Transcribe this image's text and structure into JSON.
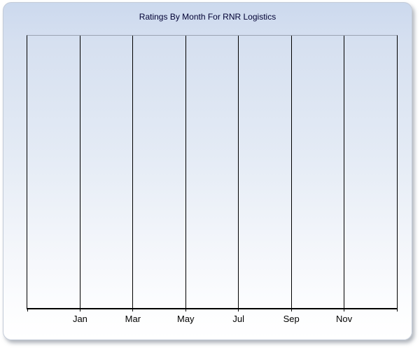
{
  "widget": {
    "title": "Ratings By Month For RNR Logistics",
    "colors": {
      "background_top": "#ccd9ee",
      "background_mid": "#e4ebf5",
      "background_bottom": "#ffffff",
      "widget_border": "#c3cbd8",
      "title_color": "#000033",
      "gridline_color": "#000000",
      "axis_color": "#000000",
      "plot_top_border": "#9aa3b2",
      "label_color": "#000000"
    }
  },
  "chart_data": {
    "type": "line",
    "title": "Ratings By Month For RNR Logistics",
    "x_tick_labels": [
      "Jan",
      "Mar",
      "May",
      "Jul",
      "Sep",
      "Nov"
    ],
    "x_intervals": 7,
    "series": [],
    "xlabel": "",
    "ylabel": "",
    "y_tick_labels": [],
    "grid": "vertical-only",
    "legend": "none"
  }
}
